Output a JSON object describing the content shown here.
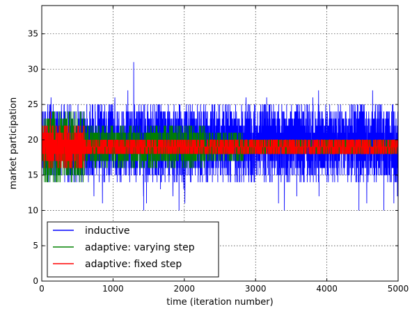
{
  "chart_data": {
    "type": "line",
    "title": "",
    "xlabel": "time (iteration number)",
    "ylabel": "market participation",
    "xlim": [
      0,
      5000
    ],
    "ylim": [
      0,
      39
    ],
    "x_ticks": [
      0,
      1000,
      2000,
      3000,
      4000,
      5000
    ],
    "y_ticks": [
      0,
      5,
      10,
      15,
      20,
      25,
      30,
      35
    ],
    "grid": true,
    "legend_position": "lower-left",
    "series": [
      {
        "name": "inductive",
        "color": "#0000ff",
        "model": {
          "mean": 19.8,
          "band_ranges": [
            {
              "from": 0,
              "to": 5000,
              "low": 14,
              "high": 25
            }
          ],
          "spike_range": [
            10,
            27
          ],
          "max_value": 31,
          "min_value": 10
        }
      },
      {
        "name": "adaptive: varying step",
        "color": "#008000",
        "model": {
          "mean": 19.0,
          "band_ranges": [
            {
              "from": 0,
              "to": 600,
              "low": 14,
              "high": 24
            },
            {
              "from": 600,
              "to": 2300,
              "low": 16,
              "high": 22
            },
            {
              "from": 2300,
              "to": 2850,
              "low": 17,
              "high": 21
            },
            {
              "from": 2850,
              "to": 5000,
              "low": 18,
              "high": 20
            }
          ],
          "max_value": 24,
          "min_value": 12
        }
      },
      {
        "name": "adaptive: fixed step",
        "color": "#ff0000",
        "model": {
          "mean": 19.0,
          "band_ranges": [
            {
              "from": 0,
              "to": 600,
              "low": 16,
              "high": 22
            },
            {
              "from": 600,
              "to": 2300,
              "low": 18,
              "high": 20
            },
            {
              "from": 2300,
              "to": 5000,
              "low": 19,
              "high": 19
            }
          ],
          "max_value": 24,
          "min_value": 14
        }
      }
    ]
  }
}
